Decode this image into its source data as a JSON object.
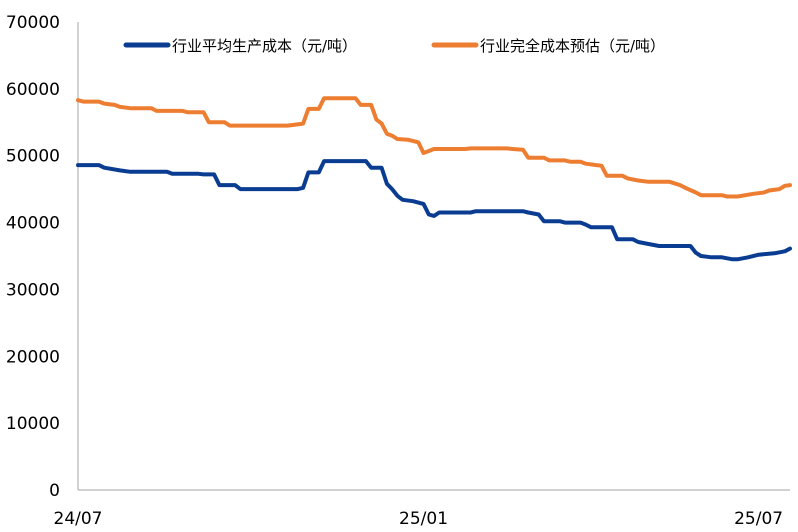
{
  "chart_data": {
    "type": "line",
    "title": "",
    "xlabel": "",
    "ylabel": "",
    "ylim": [
      0,
      70000
    ],
    "yticks": [
      0,
      10000,
      20000,
      30000,
      40000,
      50000,
      60000,
      70000
    ],
    "xticks": [
      "24/07",
      "25/01",
      "25/07"
    ],
    "grid": false,
    "legend_position": "top",
    "series": [
      {
        "name": "行业平均生产成本（元/吨）",
        "color": "#0a3d91",
        "points": [
          [
            0,
            48600
          ],
          [
            4,
            48600
          ],
          [
            5,
            48200
          ],
          [
            8,
            47800
          ],
          [
            10,
            47600
          ],
          [
            17,
            47600
          ],
          [
            18,
            47300
          ],
          [
            23,
            47300
          ],
          [
            24,
            47200
          ],
          [
            26,
            47200
          ],
          [
            27,
            45600
          ],
          [
            30,
            45600
          ],
          [
            31,
            45000
          ],
          [
            42,
            45000
          ],
          [
            43,
            45200
          ],
          [
            44,
            47500
          ],
          [
            46,
            47500
          ],
          [
            47,
            49200
          ],
          [
            55,
            49200
          ],
          [
            56,
            48200
          ],
          [
            58,
            48200
          ],
          [
            59,
            45800
          ],
          [
            60,
            45000
          ],
          [
            61,
            44000
          ],
          [
            62,
            43400
          ],
          [
            64,
            43200
          ],
          [
            66,
            42800
          ],
          [
            67,
            41200
          ],
          [
            68,
            41000
          ],
          [
            69,
            41500
          ],
          [
            75,
            41500
          ],
          [
            76,
            41700
          ],
          [
            85,
            41700
          ],
          [
            86,
            41500
          ],
          [
            88,
            41200
          ],
          [
            89,
            40200
          ],
          [
            92,
            40200
          ],
          [
            93,
            40000
          ],
          [
            96,
            40000
          ],
          [
            97,
            39700
          ],
          [
            98,
            39300
          ],
          [
            102,
            39300
          ],
          [
            103,
            37500
          ],
          [
            106,
            37500
          ],
          [
            107,
            37100
          ],
          [
            109,
            36800
          ],
          [
            111,
            36500
          ],
          [
            117,
            36500
          ],
          [
            118,
            35500
          ],
          [
            119,
            35000
          ],
          [
            121,
            34800
          ],
          [
            123,
            34800
          ],
          [
            125,
            34500
          ],
          [
            126,
            34500
          ],
          [
            128,
            34800
          ],
          [
            130,
            35200
          ],
          [
            133,
            35400
          ],
          [
            135,
            35700
          ],
          [
            136,
            36100
          ]
        ]
      },
      {
        "name": "行业完全成本预估（元/吨）",
        "color": "#ed7d31",
        "points": [
          [
            0,
            58300
          ],
          [
            1,
            58100
          ],
          [
            4,
            58100
          ],
          [
            5,
            57800
          ],
          [
            7,
            57600
          ],
          [
            8,
            57300
          ],
          [
            10,
            57100
          ],
          [
            14,
            57100
          ],
          [
            15,
            56700
          ],
          [
            20,
            56700
          ],
          [
            21,
            56500
          ],
          [
            24,
            56500
          ],
          [
            25,
            55000
          ],
          [
            28,
            55000
          ],
          [
            29,
            54500
          ],
          [
            40,
            54500
          ],
          [
            41,
            54600
          ],
          [
            43,
            54800
          ],
          [
            44,
            57000
          ],
          [
            46,
            57000
          ],
          [
            47,
            58600
          ],
          [
            53,
            58600
          ],
          [
            54,
            57600
          ],
          [
            56,
            57600
          ],
          [
            57,
            55400
          ],
          [
            58,
            54800
          ],
          [
            59,
            53300
          ],
          [
            60,
            53000
          ],
          [
            61,
            52500
          ],
          [
            63,
            52400
          ],
          [
            65,
            52000
          ],
          [
            66,
            50400
          ],
          [
            67,
            50700
          ],
          [
            68,
            51000
          ],
          [
            74,
            51000
          ],
          [
            75,
            51100
          ],
          [
            82,
            51100
          ],
          [
            83,
            51000
          ],
          [
            85,
            50900
          ],
          [
            86,
            49700
          ],
          [
            89,
            49700
          ],
          [
            90,
            49300
          ],
          [
            93,
            49300
          ],
          [
            94,
            49100
          ],
          [
            96,
            49100
          ],
          [
            97,
            48800
          ],
          [
            99,
            48600
          ],
          [
            100,
            48500
          ],
          [
            101,
            47000
          ],
          [
            104,
            47000
          ],
          [
            105,
            46600
          ],
          [
            107,
            46300
          ],
          [
            109,
            46100
          ],
          [
            113,
            46100
          ],
          [
            115,
            45600
          ],
          [
            116,
            45200
          ],
          [
            118,
            44500
          ],
          [
            119,
            44100
          ],
          [
            123,
            44100
          ],
          [
            124,
            43900
          ],
          [
            126,
            43900
          ],
          [
            129,
            44300
          ],
          [
            131,
            44500
          ],
          [
            132,
            44800
          ],
          [
            134,
            45000
          ],
          [
            135,
            45500
          ],
          [
            136,
            45600
          ]
        ]
      }
    ]
  }
}
